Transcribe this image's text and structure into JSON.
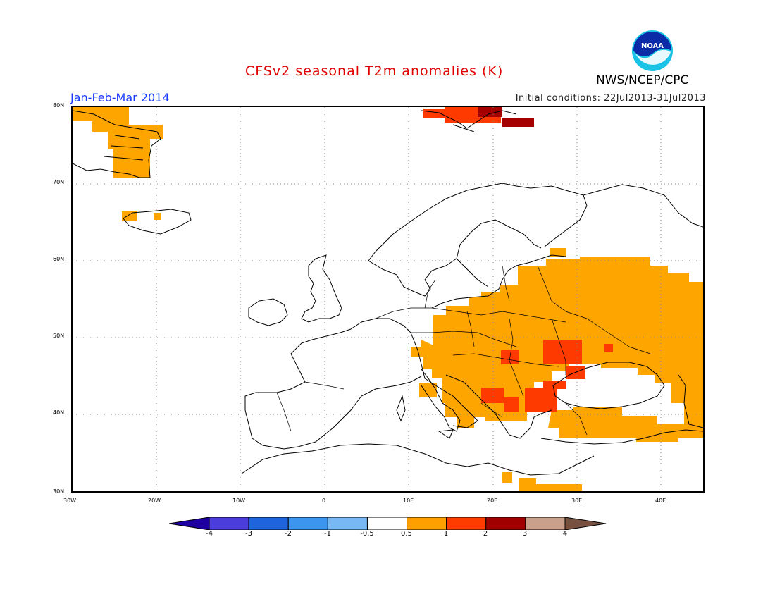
{
  "header": {
    "title": "CFSv2 seasonal T2m anomalies (K)",
    "season": "Jan-Feb-Mar 2014",
    "initial_conditions": "Initial conditions: 22Jul2013-31Jul2013",
    "agency": "NWS/NCEP/CPC",
    "logo_text": "NOAA"
  },
  "map": {
    "lon_range": [
      -30,
      45
    ],
    "lat_range": [
      30,
      80
    ],
    "lat_labels": [
      "80N",
      "70N",
      "60N",
      "50N",
      "40N",
      "30N"
    ],
    "lon_labels": [
      "30W",
      "20W",
      "10W",
      "0",
      "10E",
      "20E",
      "30E",
      "40E"
    ],
    "gridlines": "dotted",
    "anomaly_colors": {
      "0.5-1": "#ffa500",
      "1-2": "#ff3a00",
      "2-3": "#a50000"
    }
  },
  "colorbar": {
    "labels": [
      "-4",
      "-3",
      "-2",
      "-1",
      "-0.5",
      "0.5",
      "1",
      "2",
      "3",
      "4"
    ],
    "colors": [
      "#1e00a0",
      "#4b3cdc",
      "#1e64dc",
      "#3c96f0",
      "#78b9f5",
      "#ffffff",
      "#ffa000",
      "#ff3c00",
      "#a00000",
      "#c8a08c",
      "#785040"
    ]
  }
}
